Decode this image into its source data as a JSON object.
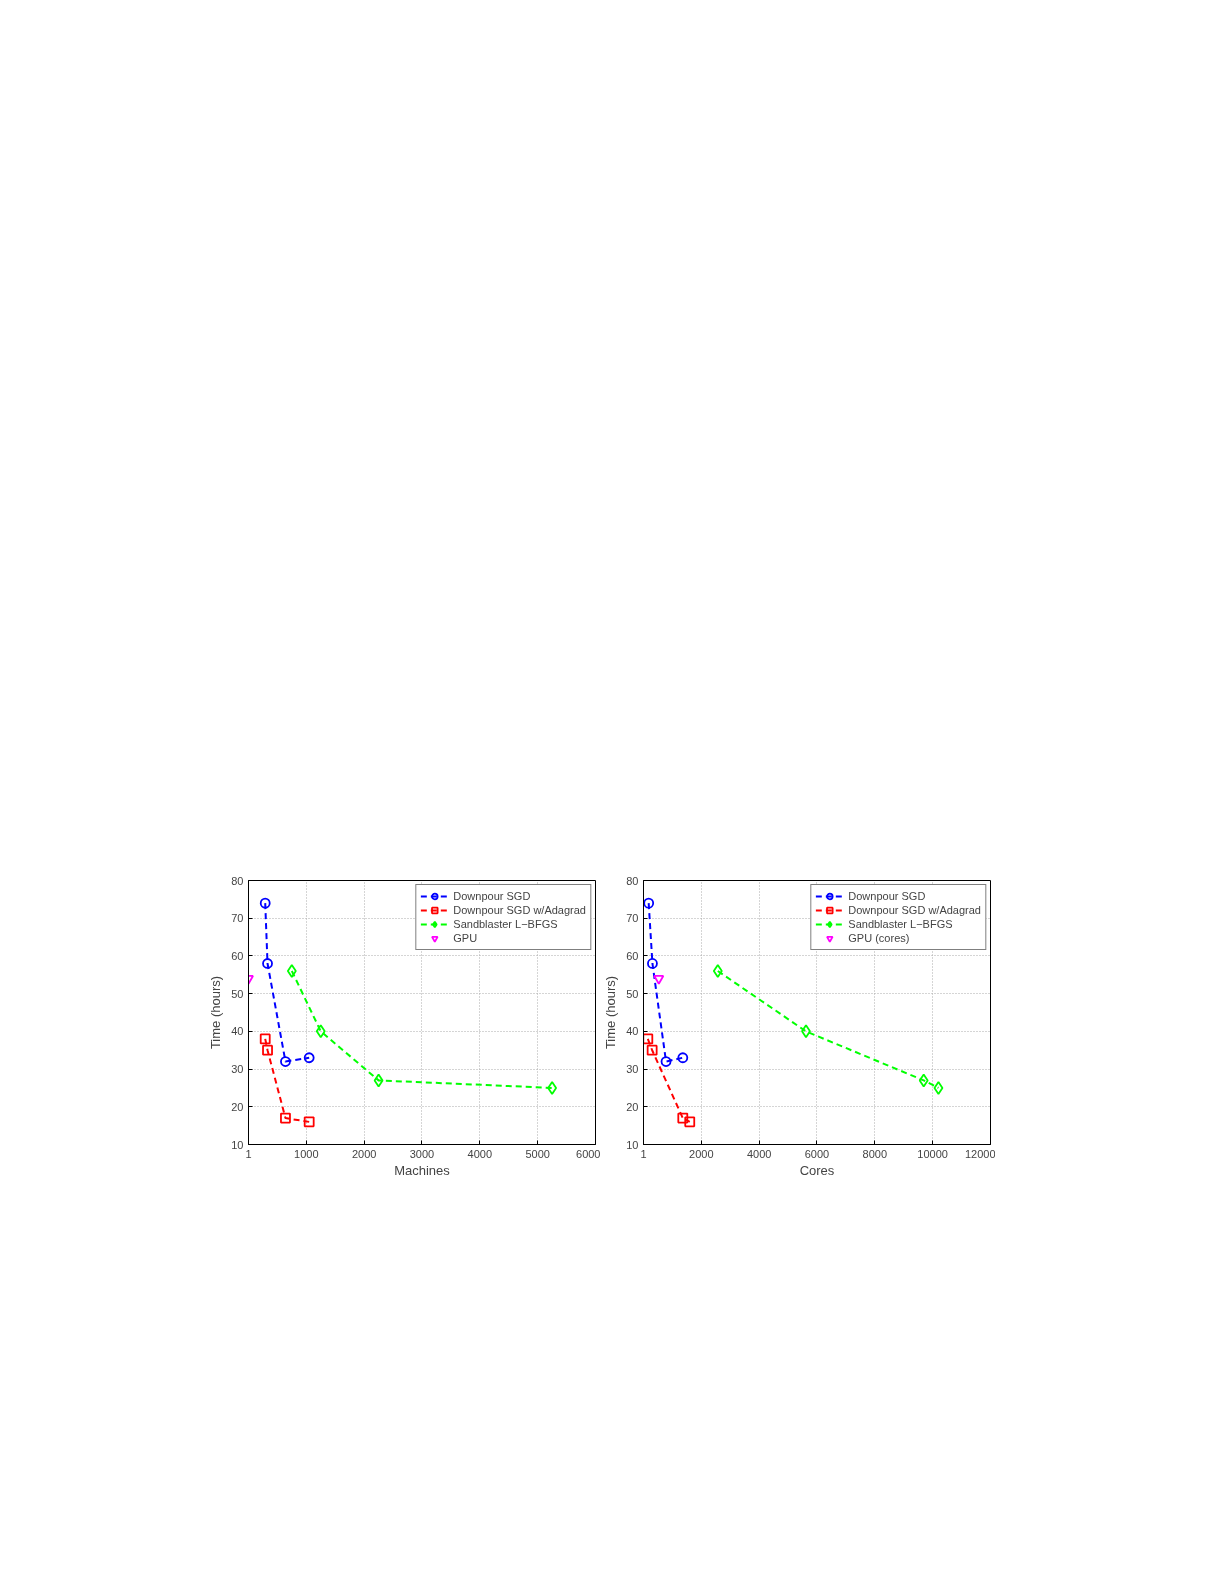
{
  "chart_data": [
    {
      "type": "line",
      "xlabel": "Machines",
      "ylabel": "Time (hours)",
      "xlim": [
        1,
        6000
      ],
      "ylim": [
        10,
        80
      ],
      "xticks": [
        1,
        1000,
        2000,
        3000,
        4000,
        5000,
        6000
      ],
      "yticks": [
        10,
        20,
        30,
        40,
        50,
        60,
        70,
        80
      ],
      "grid": true,
      "legend": "top right",
      "line_style": "dashed",
      "series": [
        {
          "name": "Downpour SGD",
          "color": "#0000ff",
          "marker": "circle",
          "x": [
            290,
            330,
            640,
            1050
          ],
          "values": [
            74,
            58,
            32,
            33
          ]
        },
        {
          "name": "Downpour SGD w/Adagrad",
          "color": "#ff0000",
          "marker": "square",
          "x": [
            290,
            330,
            640,
            1050
          ],
          "values": [
            38,
            35,
            17,
            16
          ]
        },
        {
          "name": "Sandblaster L−BFGS",
          "color": "#00ff00",
          "marker": "diamond",
          "x": [
            750,
            1250,
            2250,
            5250
          ],
          "values": [
            56,
            40,
            27,
            25
          ]
        },
        {
          "name": "GPU",
          "line_style": "none",
          "color": "#ff00ff",
          "marker": "triangle",
          "x": [
            1
          ],
          "values": [
            54
          ]
        }
      ]
    },
    {
      "type": "line",
      "xlabel": "Cores",
      "ylabel": "Time (hours)",
      "xlim": [
        1,
        12000
      ],
      "ylim": [
        10,
        80
      ],
      "xticks": [
        1,
        2000,
        4000,
        6000,
        8000,
        10000,
        12000
      ],
      "yticks": [
        10,
        20,
        30,
        40,
        50,
        60,
        70,
        80
      ],
      "grid": true,
      "legend": "top right",
      "line_style": "dashed",
      "series": [
        {
          "name": "Downpour SGD",
          "color": "#0000ff",
          "marker": "circle",
          "x": [
            180,
            310,
            780,
            1360
          ],
          "values": [
            74,
            58,
            32,
            33
          ]
        },
        {
          "name": "Downpour SGD w/Adagrad",
          "color": "#ff0000",
          "marker": "square",
          "x": [
            150,
            300,
            1360,
            1600
          ],
          "values": [
            38,
            35,
            17,
            16
          ]
        },
        {
          "name": "Sandblaster L−BFGS",
          "color": "#00ff00",
          "marker": "diamond",
          "x": [
            2570,
            5620,
            9690,
            10200
          ],
          "values": [
            56,
            40,
            27,
            25
          ]
        },
        {
          "name": "GPU (cores)",
          "line_style": "none",
          "color": "#ff00ff",
          "marker": "triangle",
          "x": [
            530
          ],
          "values": [
            54
          ]
        }
      ]
    }
  ]
}
